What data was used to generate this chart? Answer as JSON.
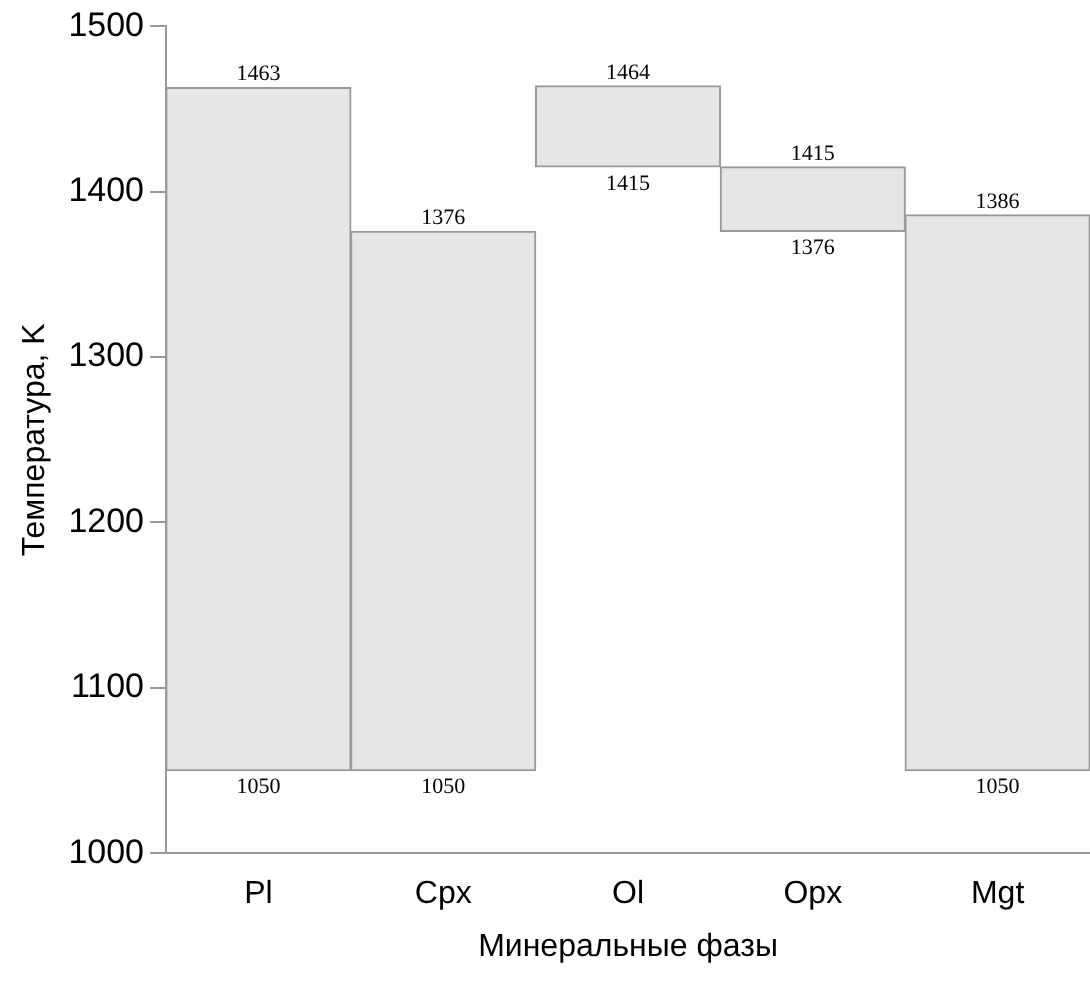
{
  "chart_data": {
    "type": "bar",
    "categories": [
      "Pl",
      "Cpx",
      "Ol",
      "Opx",
      "Mgt"
    ],
    "base": [
      1050,
      1050,
      1415,
      1376,
      1050
    ],
    "values": [
      413,
      326,
      49,
      39,
      336
    ],
    "color": "#e6e6e6",
    "ylim": [
      1000,
      1500
    ],
    "yticks": [
      1000,
      1100,
      1200,
      1300,
      1400,
      1500
    ],
    "xlabel": "Минеральные фазы",
    "ylabel": "Температура, K",
    "annotations": [
      {
        "text": "1463",
        "x": "Pl",
        "y": 1463
      },
      {
        "text": "1050",
        "x": "Pl",
        "y": 1050
      },
      {
        "text": "1376",
        "x": "Cpx",
        "y": 1376
      },
      {
        "text": "1050",
        "x": "Cpx",
        "y": 1050
      },
      {
        "text": "1464",
        "x": "Ol",
        "y": 1464
      },
      {
        "text": "1415",
        "x": "Ol",
        "y": 1415
      },
      {
        "text": "1415",
        "x": "Opx",
        "y": 1415
      },
      {
        "text": "1376",
        "x": "Opx",
        "y": 1376
      },
      {
        "text": "1386",
        "x": "Mgt",
        "y": 1386
      },
      {
        "text": "1050",
        "x": "Mgt",
        "y": 1050
      }
    ]
  }
}
